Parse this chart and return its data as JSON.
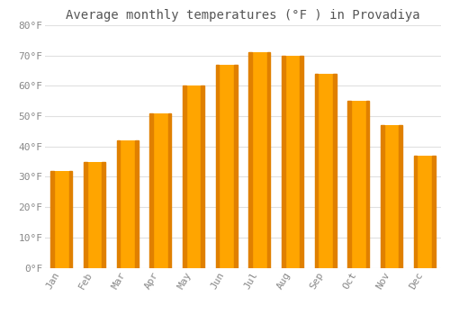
{
  "title": "Average monthly temperatures (°F ) in Provadiya",
  "months": [
    "Jan",
    "Feb",
    "Mar",
    "Apr",
    "May",
    "Jun",
    "Jul",
    "Aug",
    "Sep",
    "Oct",
    "Nov",
    "Dec"
  ],
  "values": [
    32,
    35,
    42,
    51,
    60,
    67,
    71,
    70,
    64,
    55,
    47,
    37
  ],
  "bar_color_main": "#FFA500",
  "bar_color_left": "#E08000",
  "background_color": "#FFFFFF",
  "grid_color": "#E0E0E0",
  "ylim": [
    0,
    80
  ],
  "ytick_step": 10,
  "title_fontsize": 10,
  "tick_fontsize": 8,
  "ytick_color": "#888888",
  "xtick_color": "#888888",
  "title_color": "#555555",
  "font_family": "monospace"
}
